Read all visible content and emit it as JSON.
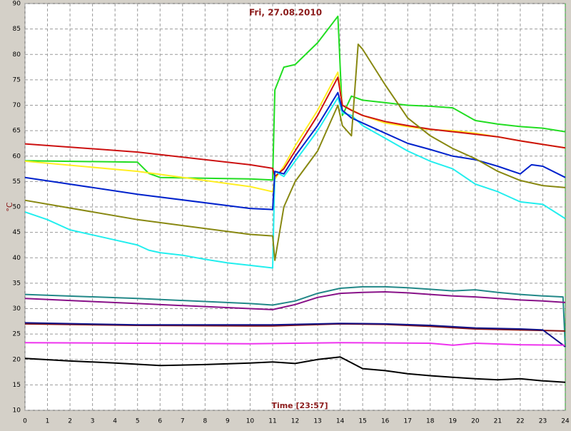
{
  "chart_data": {
    "type": "line",
    "title": "Fri, 27.08.2010",
    "xlabel": "Time [23:57]",
    "ylabel": "°C",
    "xlim": [
      0,
      24
    ],
    "xticks": [
      0,
      1,
      2,
      3,
      4,
      5,
      6,
      7,
      8,
      9,
      10,
      11,
      12,
      13,
      14,
      15,
      16,
      17,
      18,
      19,
      20,
      21,
      22,
      23,
      24
    ],
    "ylim": [
      10,
      90
    ],
    "yticks": [
      10,
      15,
      20,
      25,
      30,
      35,
      40,
      45,
      50,
      55,
      60,
      65,
      70,
      75,
      80,
      85,
      90
    ],
    "grid": true,
    "series": [
      {
        "color": "#22dd22",
        "x": [
          0,
          5,
          5.5,
          6,
          10,
          11,
          11.1,
          11.5,
          12,
          13,
          13.9,
          14.1,
          14.5,
          15,
          16,
          17,
          18,
          19,
          20,
          21,
          22,
          23,
          24
        ],
        "values": [
          59.1,
          58.8,
          56.6,
          55.8,
          55.5,
          55.3,
          73,
          77.5,
          78,
          82.3,
          87.5,
          68,
          71.8,
          71,
          70.5,
          70,
          69.8,
          69.5,
          67,
          66.3,
          65.8,
          65.5,
          64.8
        ]
      },
      {
        "color": "#ffee22",
        "x": [
          0,
          5,
          10,
          11,
          11.1,
          11.5,
          12,
          13,
          13.9,
          14.1,
          15,
          16,
          17,
          18,
          19,
          20,
          21,
          22,
          23,
          24
        ],
        "values": [
          59,
          57,
          54,
          53,
          55.5,
          58,
          62,
          69,
          76.5,
          70,
          68,
          66.5,
          65.8,
          65.2,
          65,
          64.5,
          63.8,
          63,
          62.3,
          61.6
        ]
      },
      {
        "color": "#cc1111",
        "x": [
          0,
          5,
          10,
          11,
          11.1,
          11.5,
          12,
          13,
          13.9,
          14.1,
          14.5,
          15,
          16,
          17,
          18,
          19,
          20,
          21,
          22,
          23,
          24
        ],
        "values": [
          62.4,
          60.8,
          58.3,
          57.6,
          56,
          57.5,
          61,
          68,
          75.5,
          70,
          69,
          68,
          66.8,
          66,
          65.3,
          64.8,
          64.3,
          63.8,
          63,
          62.3,
          61.6
        ]
      },
      {
        "color": "#22eeee",
        "x": [
          0,
          1,
          2,
          3,
          4,
          5,
          5.5,
          6,
          7,
          8,
          9,
          10,
          11,
          11.1,
          11.5,
          12,
          13,
          13.9,
          14.1,
          14.5,
          15,
          16,
          17,
          18,
          19,
          20,
          21,
          22,
          23,
          24
        ],
        "values": [
          49,
          47.5,
          45.5,
          44.5,
          43.5,
          42.5,
          41.5,
          41,
          40.5,
          39.7,
          39,
          38.5,
          38,
          57,
          56,
          59,
          65,
          71.5,
          68.5,
          68,
          66,
          63.5,
          61,
          59,
          57.5,
          54.5,
          53,
          51,
          50.5,
          47.7
        ]
      },
      {
        "color": "#0022cc",
        "x": [
          0,
          5,
          10,
          11,
          11.1,
          11.5,
          12,
          13,
          13.9,
          14.1,
          14.5,
          15,
          16,
          17,
          18,
          19,
          20,
          21,
          22,
          22.5,
          23,
          24
        ],
        "values": [
          55.8,
          52.5,
          49.7,
          49.5,
          57,
          56.5,
          60,
          66,
          72.5,
          69,
          67.5,
          66.5,
          64.5,
          62.5,
          61.3,
          60,
          59.3,
          58,
          56.5,
          58.3,
          58,
          55.8
        ]
      },
      {
        "color": "#888811",
        "x": [
          0,
          5,
          10,
          11,
          11.1,
          11.5,
          12,
          13,
          13.9,
          14.1,
          14.5,
          14.8,
          15,
          16,
          17,
          18,
          19,
          20,
          21,
          22,
          23,
          24
        ],
        "values": [
          51.3,
          47.5,
          44.6,
          44.3,
          39.5,
          50,
          55,
          61,
          70,
          66,
          64,
          82,
          81,
          74,
          67.5,
          64,
          61.5,
          59.5,
          57,
          55.2,
          54.2,
          53.8
        ]
      },
      {
        "color": "#228888",
        "x": [
          0,
          5,
          10,
          11,
          12,
          13,
          14,
          15,
          16,
          17,
          18,
          19,
          20,
          21,
          22,
          23,
          23.9,
          24
        ],
        "values": [
          32.8,
          32,
          31,
          30.7,
          31.5,
          33,
          34,
          34.3,
          34.3,
          34.1,
          33.8,
          33.5,
          33.7,
          33.2,
          32.8,
          32.5,
          32.3,
          22.5
        ]
      },
      {
        "color": "#881188",
        "x": [
          0,
          5,
          10,
          11,
          12,
          13,
          14,
          15,
          16,
          17,
          18,
          19,
          20,
          21,
          22,
          23,
          24
        ],
        "values": [
          32,
          31,
          30,
          29.8,
          30.8,
          32.2,
          33,
          33.2,
          33.3,
          33.1,
          32.8,
          32.5,
          32.3,
          32,
          31.7,
          31.5,
          31.2
        ]
      },
      {
        "color": "#881111",
        "x": [
          0,
          5,
          10,
          11,
          14,
          16,
          18,
          20,
          22,
          23,
          24
        ],
        "values": [
          27,
          26.7,
          26.6,
          26.6,
          27,
          26.9,
          26.5,
          26,
          25.8,
          25.7,
          25.6
        ]
      },
      {
        "color": "#111188",
        "x": [
          0,
          5,
          10,
          11,
          14,
          16,
          18,
          20,
          22,
          23,
          24
        ],
        "values": [
          27.2,
          26.8,
          26.8,
          26.8,
          27.1,
          27,
          26.7,
          26.2,
          26,
          25.8,
          22.5
        ]
      },
      {
        "color": "#ee33ee",
        "x": [
          0,
          5,
          10,
          14,
          18,
          19,
          20,
          22,
          24
        ],
        "values": [
          23.3,
          23.2,
          23.1,
          23.3,
          23.2,
          22.8,
          23.2,
          22.9,
          22.8
        ]
      },
      {
        "color": "#000000",
        "x": [
          0,
          2,
          4,
          6,
          8,
          10,
          11,
          12,
          13,
          14,
          15,
          16,
          17,
          18,
          19,
          20,
          21,
          22,
          23,
          24
        ],
        "values": [
          20.2,
          19.7,
          19.3,
          18.8,
          19,
          19.3,
          19.5,
          19.2,
          20,
          20.5,
          18.2,
          17.8,
          17.2,
          16.8,
          16.5,
          16.2,
          16,
          16.2,
          15.8,
          15.5
        ]
      }
    ]
  }
}
